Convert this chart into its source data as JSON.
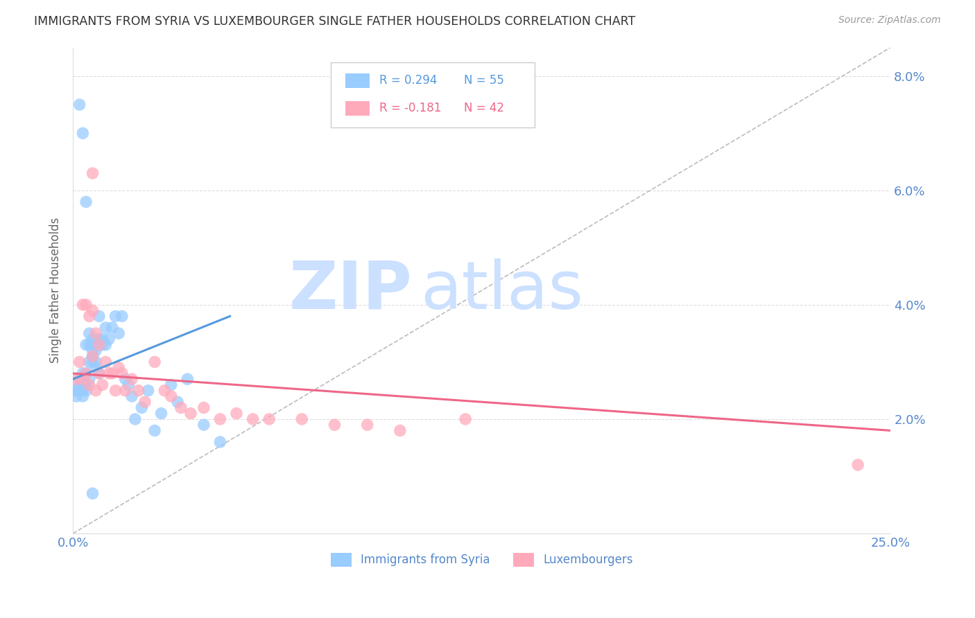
{
  "title": "IMMIGRANTS FROM SYRIA VS LUXEMBOURGER SINGLE FATHER HOUSEHOLDS CORRELATION CHART",
  "source": "Source: ZipAtlas.com",
  "ylabel": "Single Father Households",
  "xlim": [
    0.0,
    0.25
  ],
  "ylim": [
    0.0,
    0.085
  ],
  "yticks": [
    0.0,
    0.02,
    0.04,
    0.06,
    0.08
  ],
  "ytick_labels": [
    "",
    "2.0%",
    "4.0%",
    "6.0%",
    "8.0%"
  ],
  "xticks": [
    0.0,
    0.05,
    0.1,
    0.15,
    0.2,
    0.25
  ],
  "xtick_labels": [
    "0.0%",
    "",
    "",
    "",
    "",
    "25.0%"
  ],
  "color_blue": "#99ccff",
  "color_pink": "#ffaabb",
  "color_line_blue": "#5599dd",
  "color_line_pink": "#ee6688",
  "color_diag": "#bbbbbb",
  "color_grid": "#dddddd",
  "color_ytick_label": "#5588cc",
  "color_title": "#333333",
  "watermark_zip": "ZIP",
  "watermark_atlas": "atlas",
  "watermark_color": "#cce0ff",
  "syria_x": [
    0.0005,
    0.001,
    0.0015,
    0.002,
    0.002,
    0.002,
    0.003,
    0.003,
    0.003,
    0.003,
    0.004,
    0.004,
    0.004,
    0.004,
    0.005,
    0.005,
    0.005,
    0.005,
    0.006,
    0.006,
    0.006,
    0.006,
    0.006,
    0.007,
    0.007,
    0.007,
    0.008,
    0.008,
    0.009,
    0.009,
    0.01,
    0.01,
    0.011,
    0.012,
    0.013,
    0.014,
    0.015,
    0.016,
    0.017,
    0.018,
    0.019,
    0.021,
    0.023,
    0.025,
    0.027,
    0.03,
    0.032,
    0.035,
    0.04,
    0.045,
    0.002,
    0.003,
    0.004,
    0.006,
    0.008
  ],
  "syria_y": [
    0.025,
    0.024,
    0.025,
    0.026,
    0.025,
    0.027,
    0.028,
    0.024,
    0.026,
    0.025,
    0.033,
    0.028,
    0.026,
    0.025,
    0.03,
    0.027,
    0.035,
    0.033,
    0.032,
    0.03,
    0.031,
    0.033,
    0.034,
    0.03,
    0.029,
    0.032,
    0.034,
    0.028,
    0.033,
    0.034,
    0.036,
    0.033,
    0.034,
    0.036,
    0.038,
    0.035,
    0.038,
    0.027,
    0.026,
    0.024,
    0.02,
    0.022,
    0.025,
    0.018,
    0.021,
    0.026,
    0.023,
    0.027,
    0.019,
    0.016,
    0.075,
    0.07,
    0.058,
    0.007,
    0.038
  ],
  "lux_x": [
    0.001,
    0.002,
    0.003,
    0.003,
    0.004,
    0.004,
    0.005,
    0.005,
    0.006,
    0.006,
    0.007,
    0.007,
    0.008,
    0.008,
    0.009,
    0.01,
    0.011,
    0.012,
    0.013,
    0.014,
    0.015,
    0.016,
    0.018,
    0.02,
    0.022,
    0.025,
    0.028,
    0.03,
    0.033,
    0.036,
    0.04,
    0.045,
    0.05,
    0.055,
    0.06,
    0.07,
    0.08,
    0.09,
    0.1,
    0.12,
    0.24,
    0.006
  ],
  "lux_y": [
    0.027,
    0.03,
    0.04,
    0.027,
    0.04,
    0.028,
    0.038,
    0.026,
    0.039,
    0.031,
    0.035,
    0.025,
    0.033,
    0.028,
    0.026,
    0.03,
    0.028,
    0.028,
    0.025,
    0.029,
    0.028,
    0.025,
    0.027,
    0.025,
    0.023,
    0.03,
    0.025,
    0.024,
    0.022,
    0.021,
    0.022,
    0.02,
    0.021,
    0.02,
    0.02,
    0.02,
    0.019,
    0.019,
    0.018,
    0.02,
    0.012,
    0.063
  ],
  "syria_line_x": [
    0.0,
    0.048
  ],
  "syria_line_y_start": 0.027,
  "syria_line_y_end": 0.038,
  "lux_line_x": [
    0.0,
    0.25
  ],
  "lux_line_y_start": 0.028,
  "lux_line_y_end": 0.018
}
